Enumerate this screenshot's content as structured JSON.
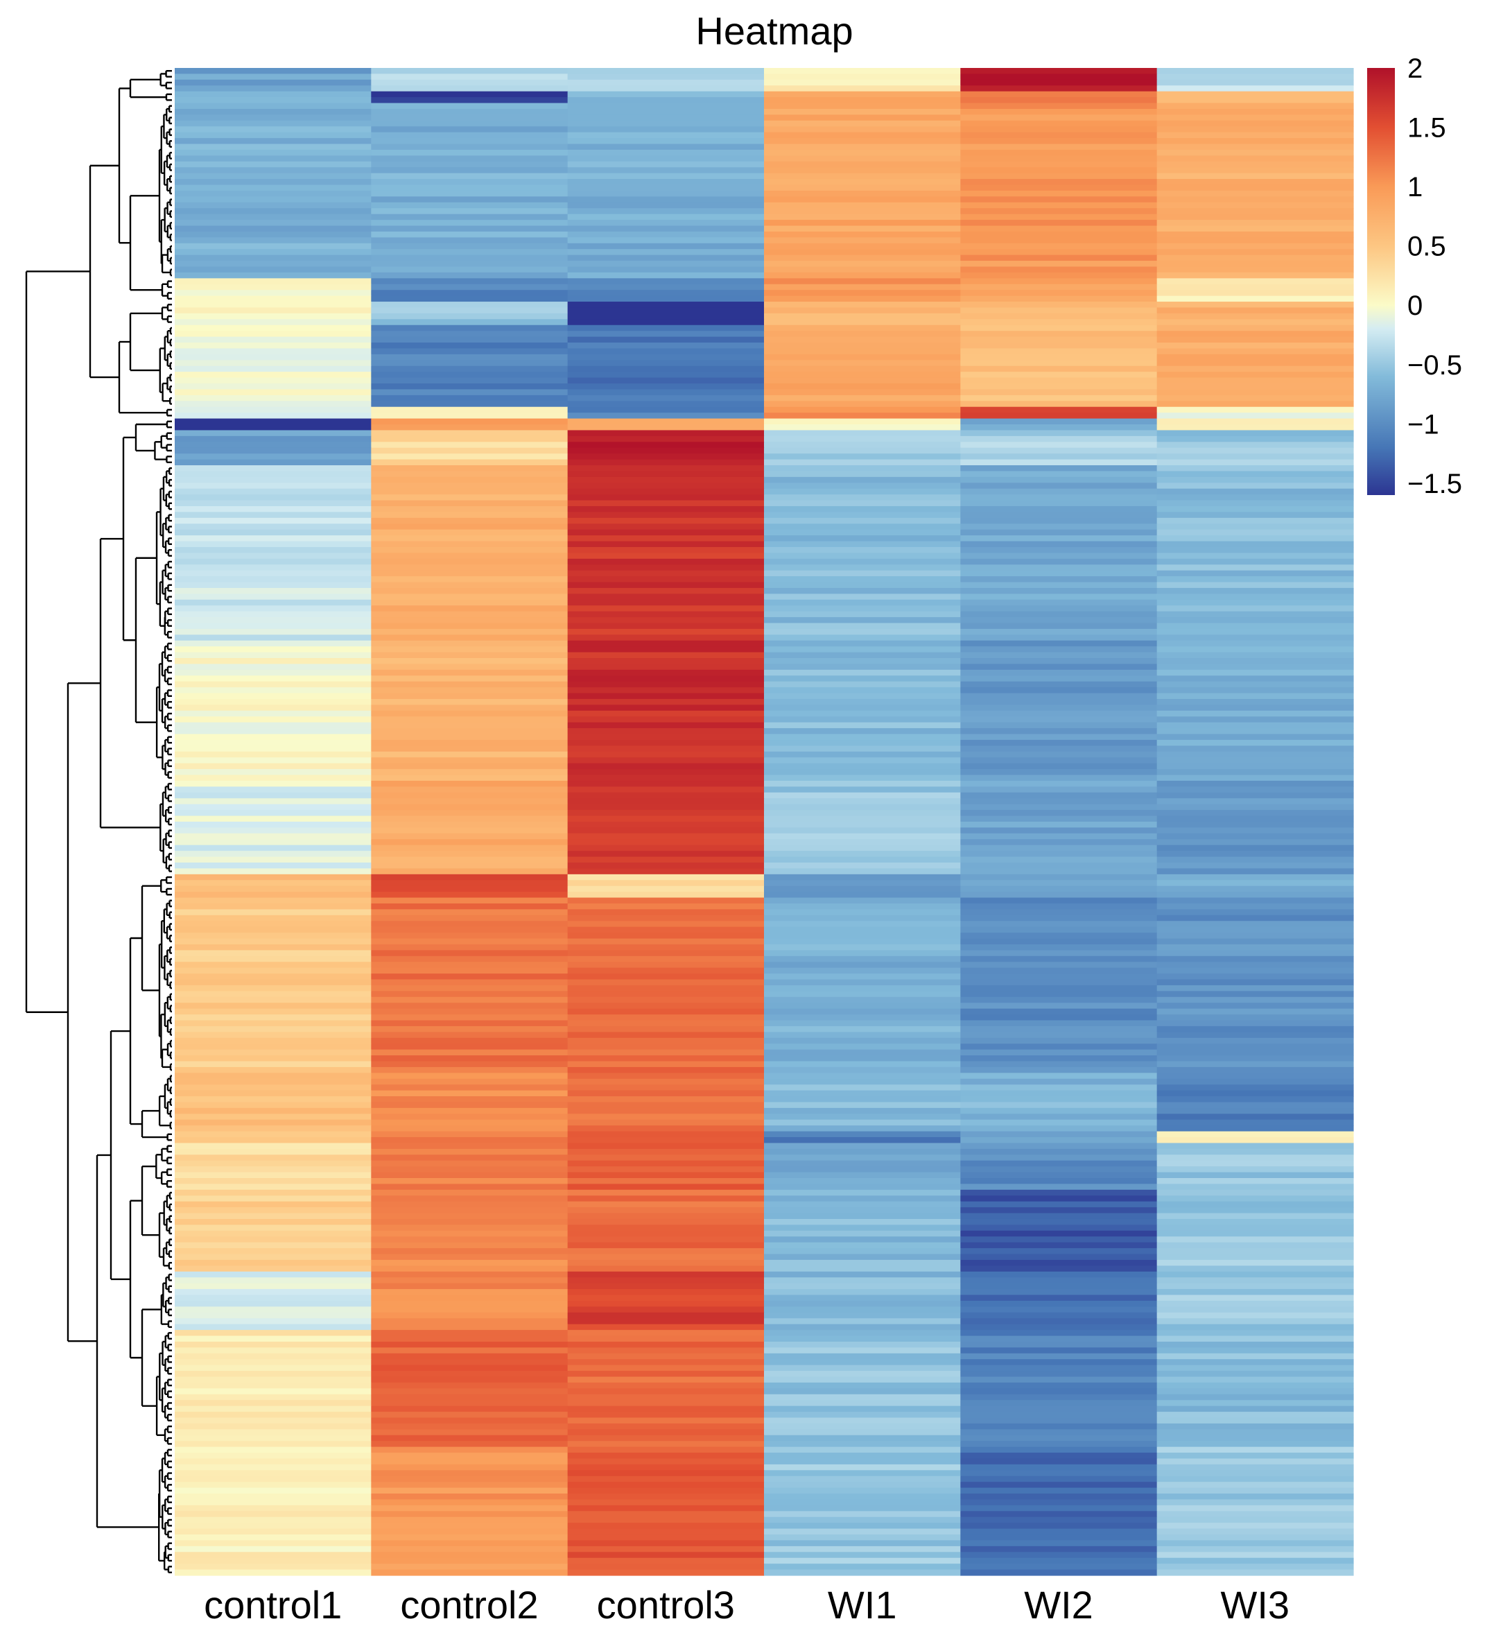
{
  "chart_data": {
    "type": "heatmap",
    "title": "Heatmap",
    "columns": [
      "control1",
      "control2",
      "control3",
      "WI1",
      "WI2",
      "WI3"
    ],
    "color_scale": {
      "min": -1.6,
      "max": 2.0,
      "stops": [
        {
          "value": -1.6,
          "color": "#2c3592"
        },
        {
          "value": -1.2,
          "color": "#4676b6"
        },
        {
          "value": -0.6,
          "color": "#83bbda"
        },
        {
          "value": -0.2,
          "color": "#d4ecf2"
        },
        {
          "value": 0.0,
          "color": "#fbfbc8"
        },
        {
          "value": 0.5,
          "color": "#fdc682"
        },
        {
          "value": 1.0,
          "color": "#f99a57"
        },
        {
          "value": 1.5,
          "color": "#e24f32"
        },
        {
          "value": 2.0,
          "color": "#b0112a"
        }
      ],
      "ticks": [
        2,
        1.5,
        1,
        0.5,
        0,
        -0.5,
        -1,
        -1.5
      ],
      "tick_labels": [
        "2",
        "1.5",
        "1",
        "0.5",
        "0",
        "−0.5",
        "−1",
        "−1.5"
      ]
    },
    "row_blocks": [
      {
        "rows": 4,
        "values": [
          -0.8,
          -0.35,
          -0.3,
          0.1,
          2.0,
          -0.3
        ]
      },
      {
        "rows": 2,
        "values": [
          -0.6,
          -1.6,
          -0.7,
          0.8,
          1.3,
          0.7
        ]
      },
      {
        "rows": 30,
        "values": [
          -0.7,
          -0.7,
          -0.7,
          0.85,
          1.0,
          0.75
        ]
      },
      {
        "rows": 4,
        "values": [
          -0.05,
          -1.1,
          -1.1,
          1.0,
          0.9,
          0.1
        ]
      },
      {
        "rows": 4,
        "values": [
          0.0,
          -0.5,
          -1.6,
          0.7,
          0.6,
          0.75
        ]
      },
      {
        "rows": 14,
        "values": [
          -0.05,
          -1.1,
          -1.2,
          0.85,
          0.6,
          0.8
        ]
      },
      {
        "rows": 2,
        "values": [
          -0.1,
          0.05,
          -1.1,
          1.0,
          1.5,
          0.0
        ]
      },
      {
        "rows": 2,
        "values": [
          -1.6,
          1.0,
          0.7,
          0.1,
          -0.8,
          0.2
        ]
      },
      {
        "rows": 6,
        "values": [
          -0.8,
          0.3,
          1.9,
          -0.5,
          -0.4,
          -0.5
        ]
      },
      {
        "rows": 30,
        "values": [
          -0.25,
          0.75,
          1.7,
          -0.6,
          -0.75,
          -0.6
        ]
      },
      {
        "rows": 24,
        "values": [
          0.0,
          0.7,
          1.75,
          -0.6,
          -0.9,
          -0.7
        ]
      },
      {
        "rows": 16,
        "values": [
          -0.15,
          0.8,
          1.7,
          -0.5,
          -0.8,
          -0.9
        ]
      },
      {
        "rows": 4,
        "values": [
          0.6,
          1.6,
          0.3,
          -1.0,
          -0.8,
          -0.7
        ]
      },
      {
        "rows": 30,
        "values": [
          0.45,
          1.25,
          1.3,
          -0.7,
          -1.0,
          -0.95
        ]
      },
      {
        "rows": 10,
        "values": [
          0.55,
          1.1,
          1.25,
          -0.6,
          -0.65,
          -1.1
        ]
      },
      {
        "rows": 2,
        "values": [
          0.4,
          1.2,
          1.3,
          -1.1,
          -0.8,
          0.1
        ]
      },
      {
        "rows": 8,
        "values": [
          0.3,
          1.2,
          1.4,
          -0.8,
          -1.0,
          -0.5
        ]
      },
      {
        "rows": 14,
        "values": [
          0.4,
          1.1,
          1.3,
          -0.6,
          -1.4,
          -0.5
        ]
      },
      {
        "rows": 10,
        "values": [
          -0.2,
          1.1,
          1.6,
          -0.6,
          -1.2,
          -0.5
        ]
      },
      {
        "rows": 20,
        "values": [
          0.15,
          1.35,
          1.3,
          -0.55,
          -1.1,
          -0.6
        ]
      },
      {
        "rows": 22,
        "values": [
          0.1,
          1.0,
          1.45,
          -0.5,
          -1.25,
          -0.5
        ]
      }
    ]
  }
}
